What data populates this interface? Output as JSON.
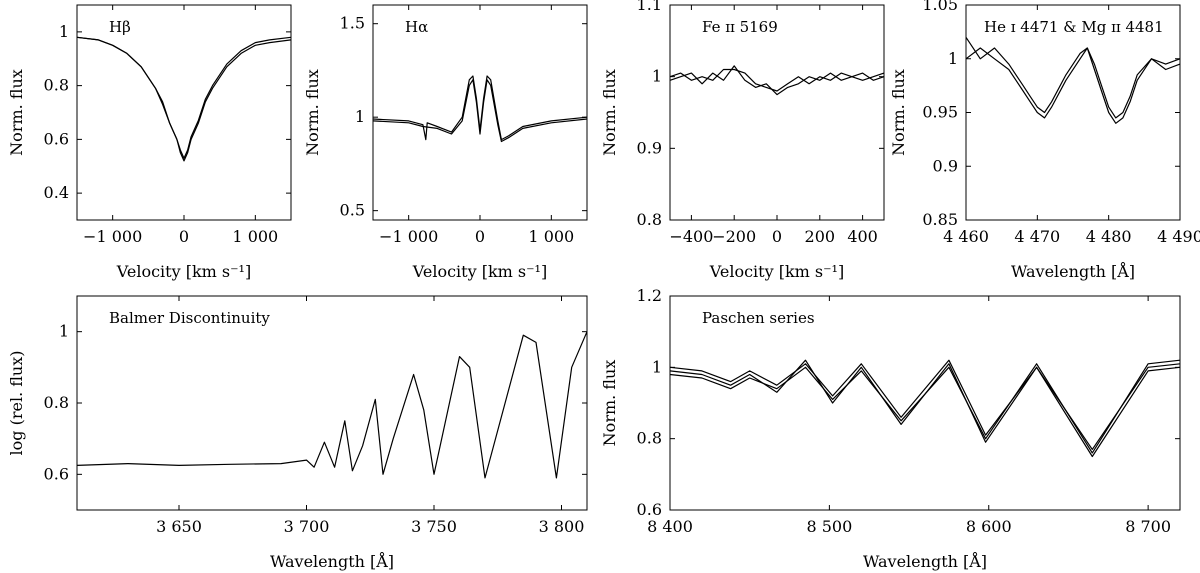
{
  "chart_data": [
    {
      "type": "line",
      "title": "Hβ",
      "xlabel": "Velocity [km s⁻¹]",
      "ylabel": "Norm. flux",
      "xlim": [
        -1500,
        1500
      ],
      "ylim": [
        0.3,
        1.1
      ],
      "xticks": [
        -1000,
        0,
        1000
      ],
      "xtick_labels": [
        "−1 000",
        "0",
        "1 000"
      ],
      "yticks": [
        0.4,
        0.6,
        0.8,
        1.0
      ],
      "ytick_labels": [
        "0.4",
        "0.6",
        "0.8",
        "1"
      ],
      "series": [
        {
          "x": [
            -1500,
            -1200,
            -1000,
            -800,
            -600,
            -400,
            -300,
            -200,
            -100,
            -50,
            0,
            50,
            100,
            200,
            300,
            400,
            600,
            800,
            1000,
            1200,
            1500
          ],
          "y": [
            0.98,
            0.97,
            0.95,
            0.92,
            0.87,
            0.79,
            0.74,
            0.66,
            0.6,
            0.55,
            0.52,
            0.55,
            0.6,
            0.66,
            0.74,
            0.79,
            0.87,
            0.92,
            0.95,
            0.96,
            0.97
          ]
        },
        {
          "x": [
            -1500,
            -1200,
            -1000,
            -800,
            -600,
            -400,
            -300,
            -200,
            -100,
            -50,
            0,
            50,
            100,
            200,
            300,
            400,
            600,
            800,
            1000,
            1200,
            1500
          ],
          "y": [
            0.98,
            0.97,
            0.95,
            0.92,
            0.87,
            0.79,
            0.73,
            0.66,
            0.6,
            0.56,
            0.53,
            0.56,
            0.61,
            0.67,
            0.75,
            0.8,
            0.88,
            0.93,
            0.96,
            0.97,
            0.98
          ]
        }
      ]
    },
    {
      "type": "line",
      "title": "Hα",
      "xlabel": "Velocity [km s⁻¹]",
      "ylabel": "Norm. flux",
      "xlim": [
        -1500,
        1500
      ],
      "ylim": [
        0.45,
        1.6
      ],
      "xticks": [
        -1000,
        0,
        1000
      ],
      "xtick_labels": [
        "−1 000",
        "0",
        "1 000"
      ],
      "yticks": [
        0.5,
        1.0,
        1.5
      ],
      "ytick_labels": [
        "0.5",
        "1",
        "1.5"
      ],
      "series": [
        {
          "x": [
            -1500,
            -1000,
            -800,
            -760,
            -740,
            -600,
            -400,
            -250,
            -150,
            -100,
            -50,
            0,
            50,
            100,
            150,
            250,
            300,
            400,
            600,
            1000,
            1500
          ],
          "y": [
            0.99,
            0.98,
            0.96,
            0.88,
            0.97,
            0.95,
            0.92,
            1.0,
            1.2,
            1.22,
            1.1,
            0.93,
            1.1,
            1.22,
            1.2,
            0.98,
            0.88,
            0.9,
            0.95,
            0.98,
            1.0
          ]
        },
        {
          "x": [
            -1500,
            -1000,
            -800,
            -600,
            -400,
            -250,
            -150,
            -100,
            -50,
            0,
            50,
            100,
            150,
            250,
            300,
            400,
            600,
            1000,
            1500
          ],
          "y": [
            0.98,
            0.97,
            0.95,
            0.94,
            0.91,
            0.98,
            1.17,
            1.2,
            1.08,
            0.91,
            1.08,
            1.2,
            1.17,
            0.96,
            0.87,
            0.89,
            0.94,
            0.97,
            0.99
          ]
        }
      ]
    },
    {
      "type": "line",
      "title": "Fe ɪɪ 5169",
      "xlabel": "Velocity [km s⁻¹]",
      "ylabel": "Norm. flux",
      "xlim": [
        -500,
        500
      ],
      "ylim": [
        0.8,
        1.1
      ],
      "xticks": [
        -400,
        -200,
        0,
        200,
        400
      ],
      "xtick_labels": [
        "−400",
        "−200",
        "0",
        "200",
        "400"
      ],
      "yticks": [
        0.8,
        0.9,
        1.0,
        1.1
      ],
      "ytick_labels": [
        "0.8",
        "0.9",
        "1",
        "1.1"
      ],
      "series": [
        {
          "x": [
            -500,
            -450,
            -400,
            -350,
            -300,
            -250,
            -200,
            -150,
            -100,
            -50,
            0,
            50,
            100,
            150,
            200,
            250,
            300,
            350,
            400,
            450,
            500
          ],
          "y": [
            1.0,
            1.005,
            0.995,
            1.0,
            0.995,
            1.01,
            1.01,
            1.005,
            0.99,
            0.985,
            0.98,
            0.99,
            1.0,
            0.99,
            1.0,
            0.995,
            1.005,
            1.0,
            0.995,
            1.0,
            1.005
          ]
        },
        {
          "x": [
            -500,
            -450,
            -400,
            -350,
            -300,
            -250,
            -200,
            -150,
            -100,
            -50,
            0,
            50,
            100,
            150,
            200,
            250,
            300,
            350,
            400,
            450,
            500
          ],
          "y": [
            0.995,
            1.0,
            1.005,
            0.99,
            1.005,
            0.995,
            1.015,
            0.995,
            0.985,
            0.99,
            0.975,
            0.985,
            0.99,
            1.0,
            0.995,
            1.005,
            0.995,
            1.0,
            1.005,
            0.995,
            1.0
          ]
        }
      ]
    },
    {
      "type": "line",
      "title": "He ɪ 4471 & Mg ɪɪ 4481",
      "xlabel": "Wavelength [Å]",
      "ylabel": "Norm. flux",
      "xlim": [
        4460,
        4490
      ],
      "ylim": [
        0.85,
        1.05
      ],
      "xticks": [
        4460,
        4470,
        4480,
        4490
      ],
      "xtick_labels": [
        "4 460",
        "4 470",
        "4 480",
        "4 490"
      ],
      "yticks": [
        0.85,
        0.9,
        0.95,
        1.0,
        1.05
      ],
      "ytick_labels": [
        "0.85",
        "0.9",
        "0.95",
        "1",
        "1.05"
      ],
      "series": [
        {
          "x": [
            4460,
            4462,
            4464,
            4466,
            4468,
            4469,
            4470,
            4471,
            4472,
            4474,
            4476,
            4477,
            4478,
            4479,
            4480,
            4481,
            4482,
            4483,
            4484,
            4486,
            4488,
            4490
          ],
          "y": [
            1.0,
            1.01,
            1.0,
            0.99,
            0.97,
            0.96,
            0.95,
            0.945,
            0.955,
            0.98,
            1.0,
            1.01,
            0.99,
            0.97,
            0.95,
            0.94,
            0.945,
            0.96,
            0.98,
            1.0,
            0.99,
            0.995
          ]
        },
        {
          "x": [
            4460,
            4462,
            4464,
            4466,
            4468,
            4469,
            4470,
            4471,
            4472,
            4474,
            4476,
            4477,
            4478,
            4479,
            4480,
            4481,
            4482,
            4483,
            4484,
            4486,
            4488,
            4490
          ],
          "y": [
            1.02,
            1.0,
            1.01,
            0.995,
            0.975,
            0.965,
            0.955,
            0.95,
            0.96,
            0.985,
            1.005,
            1.01,
            0.995,
            0.975,
            0.955,
            0.945,
            0.95,
            0.965,
            0.985,
            1.0,
            0.995,
            1.0
          ]
        }
      ]
    },
    {
      "type": "line",
      "title": "Balmer Discontinuity",
      "xlabel": "Wavelength [Å]",
      "ylabel": "log (rel. flux)",
      "xlim": [
        3610,
        3810
      ],
      "ylim": [
        0.5,
        1.1
      ],
      "xticks": [
        3650,
        3700,
        3750,
        3800
      ],
      "xtick_labels": [
        "3 650",
        "3 700",
        "3 750",
        "3 800"
      ],
      "yticks": [
        0.6,
        0.8,
        1.0
      ],
      "ytick_labels": [
        "0.6",
        "0.8",
        "1"
      ],
      "series": [
        {
          "x": [
            3610,
            3630,
            3650,
            3670,
            3690,
            3700,
            3703,
            3707,
            3711,
            3715,
            3718,
            3722,
            3727,
            3730,
            3734,
            3742,
            3746,
            3750,
            3760,
            3764,
            3770,
            3785,
            3790,
            3798,
            3804,
            3810
          ],
          "y": [
            0.625,
            0.63,
            0.625,
            0.628,
            0.63,
            0.64,
            0.62,
            0.69,
            0.62,
            0.75,
            0.61,
            0.68,
            0.81,
            0.6,
            0.7,
            0.88,
            0.78,
            0.6,
            0.93,
            0.9,
            0.59,
            0.99,
            0.97,
            0.59,
            0.9,
            1.0
          ]
        }
      ]
    },
    {
      "type": "line",
      "title": "Paschen series",
      "xlabel": "Wavelength [Å]",
      "ylabel": "Norm. flux",
      "xlim": [
        8400,
        8720
      ],
      "ylim": [
        0.6,
        1.2
      ],
      "xticks": [
        8400,
        8500,
        8600,
        8700
      ],
      "xtick_labels": [
        "8 400",
        "8 500",
        "8 600",
        "8 700"
      ],
      "yticks": [
        0.6,
        0.8,
        1.0,
        1.2
      ],
      "ytick_labels": [
        "0.6",
        "0.8",
        "1",
        "1.2"
      ],
      "series": [
        {
          "x": [
            8400,
            8420,
            8438,
            8450,
            8467,
            8485,
            8502,
            8520,
            8545,
            8575,
            8598,
            8630,
            8665,
            8700,
            8720
          ],
          "y": [
            0.99,
            0.98,
            0.95,
            0.98,
            0.93,
            1.02,
            0.9,
            1.0,
            0.84,
            1.01,
            0.79,
            1.0,
            0.75,
            0.99,
            1.0
          ]
        },
        {
          "x": [
            8400,
            8420,
            8438,
            8450,
            8467,
            8485,
            8502,
            8520,
            8545,
            8575,
            8598,
            8630,
            8665,
            8700,
            8720
          ],
          "y": [
            0.98,
            0.97,
            0.94,
            0.97,
            0.94,
            1.0,
            0.91,
            0.99,
            0.85,
            1.0,
            0.8,
            1.01,
            0.76,
            1.01,
            1.02
          ]
        },
        {
          "x": [
            8400,
            8420,
            8438,
            8450,
            8467,
            8485,
            8502,
            8520,
            8545,
            8575,
            8598,
            8630,
            8665,
            8700,
            8720
          ],
          "y": [
            1.0,
            0.99,
            0.96,
            0.99,
            0.95,
            1.01,
            0.92,
            1.01,
            0.86,
            1.02,
            0.81,
            1.0,
            0.77,
            1.0,
            1.01
          ]
        }
      ]
    }
  ]
}
